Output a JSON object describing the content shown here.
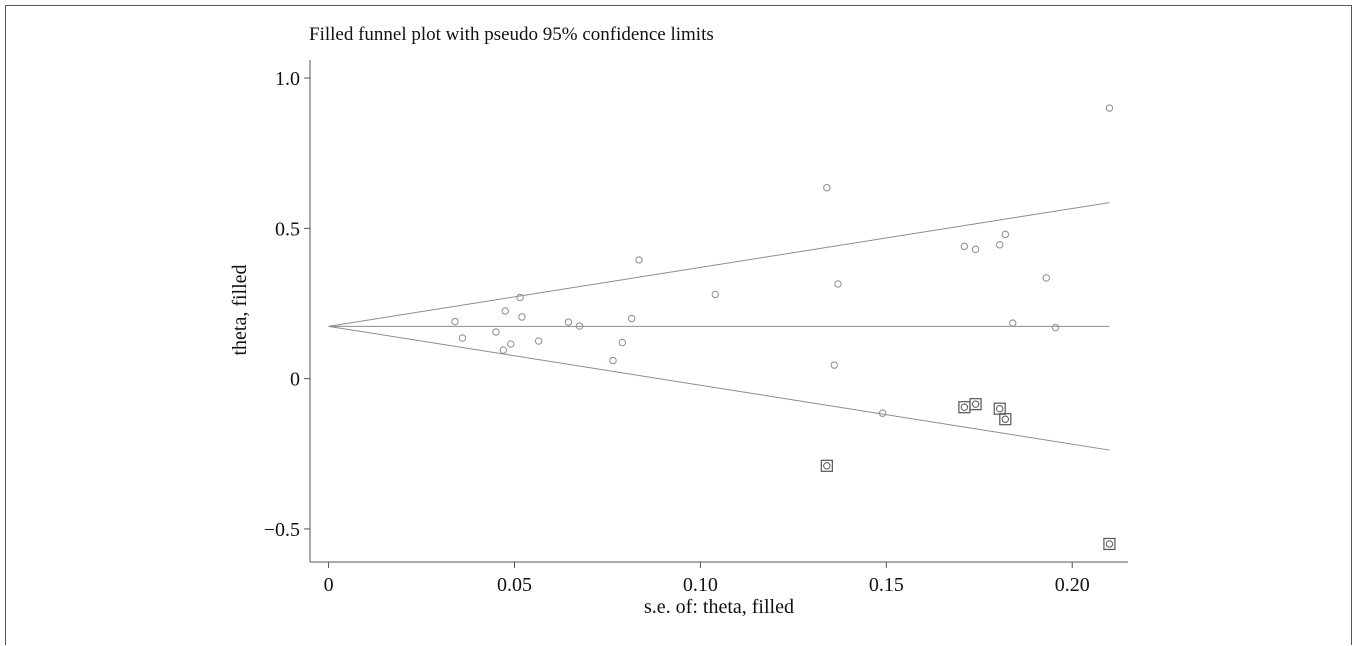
{
  "chart_data": {
    "type": "scatter",
    "title": "Filled funnel plot with pseudo 95% confidence limits",
    "xlabel": "s.e. of: theta, filled",
    "ylabel": "theta, filled",
    "xlim": [
      -0.005,
      0.215
    ],
    "ylim": [
      -0.61,
      1.06
    ],
    "xticks": [
      {
        "value": 0,
        "label": "0"
      },
      {
        "value": 0.05,
        "label": "0.05"
      },
      {
        "value": 0.1,
        "label": "0.10"
      },
      {
        "value": 0.15,
        "label": "0.15"
      },
      {
        "value": 0.2,
        "label": "0.20"
      }
    ],
    "yticks": [
      {
        "value": 1.0,
        "label": "1.0"
      },
      {
        "value": 0.5,
        "label": "0.5"
      },
      {
        "value": 0,
        "label": "0"
      },
      {
        "value": -0.5,
        "label": "−0.5"
      }
    ],
    "pooled_estimate": 0.174,
    "ci_multiplier": 1.96,
    "x_max": 0.21,
    "grid": false,
    "colors": {
      "line": "#8c8c8c",
      "point": "#8c8c8c",
      "filled_box": "#555555",
      "axis": "#555555"
    },
    "series": [
      {
        "marker": "circle",
        "points": [
          {
            "x": 0.034,
            "y": 0.19
          },
          {
            "x": 0.036,
            "y": 0.135
          },
          {
            "x": 0.045,
            "y": 0.155
          },
          {
            "x": 0.047,
            "y": 0.095
          },
          {
            "x": 0.0475,
            "y": 0.225
          },
          {
            "x": 0.049,
            "y": 0.115
          },
          {
            "x": 0.0515,
            "y": 0.27
          },
          {
            "x": 0.052,
            "y": 0.205
          },
          {
            "x": 0.0565,
            "y": 0.125
          },
          {
            "x": 0.0645,
            "y": 0.188
          },
          {
            "x": 0.0675,
            "y": 0.175
          },
          {
            "x": 0.0765,
            "y": 0.06
          },
          {
            "x": 0.079,
            "y": 0.12
          },
          {
            "x": 0.0815,
            "y": 0.2
          },
          {
            "x": 0.0835,
            "y": 0.395
          },
          {
            "x": 0.104,
            "y": 0.28
          },
          {
            "x": 0.134,
            "y": 0.635
          },
          {
            "x": 0.136,
            "y": 0.045
          },
          {
            "x": 0.137,
            "y": 0.315
          },
          {
            "x": 0.149,
            "y": -0.115
          },
          {
            "x": 0.171,
            "y": 0.44
          },
          {
            "x": 0.174,
            "y": 0.43
          },
          {
            "x": 0.1805,
            "y": 0.445
          },
          {
            "x": 0.182,
            "y": 0.48
          },
          {
            "x": 0.184,
            "y": 0.185
          },
          {
            "x": 0.193,
            "y": 0.335
          },
          {
            "x": 0.1955,
            "y": 0.17
          },
          {
            "x": 0.21,
            "y": 0.9
          }
        ]
      },
      {
        "marker": "square-circle",
        "points": [
          {
            "x": 0.134,
            "y": -0.29
          },
          {
            "x": 0.171,
            "y": -0.095
          },
          {
            "x": 0.174,
            "y": -0.085
          },
          {
            "x": 0.1805,
            "y": -0.1
          },
          {
            "x": 0.182,
            "y": -0.135
          },
          {
            "x": 0.21,
            "y": -0.55
          }
        ]
      }
    ]
  }
}
